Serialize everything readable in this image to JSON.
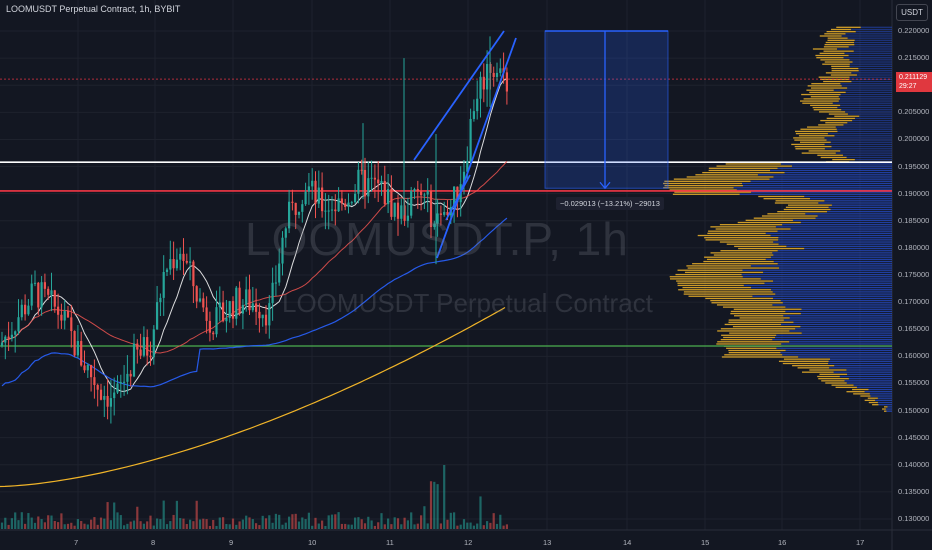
{
  "header": {
    "title": "LOOMUSDT Perpetual Contract, 1h, BYBIT",
    "currency": "USDT"
  },
  "watermark": {
    "symbol": "LOOMUSDT.P, 1h",
    "description": "LOOMUSDT Perpetual Contract"
  },
  "price_axis": {
    "labels": [
      "0.220000",
      "0.215000",
      "0.210000",
      "0.205000",
      "0.200000",
      "0.195000",
      "0.190000",
      "0.185000",
      "0.180000",
      "0.175000",
      "0.170000",
      "0.165000",
      "0.160000",
      "0.155000",
      "0.150000",
      "0.145000",
      "0.140000",
      "0.135000",
      "0.130000"
    ],
    "current_price": "0.211129",
    "countdown": "29:27"
  },
  "time_axis": {
    "labels": [
      "7",
      "8",
      "9",
      "10",
      "11",
      "12",
      "13",
      "14",
      "15",
      "16",
      "17"
    ]
  },
  "measure": {
    "label": "−0.029013 (−13.21%) −29013"
  },
  "colors": {
    "background": "#131722",
    "up": "#26a69a",
    "down": "#ef5350",
    "white_line": "#ffffff",
    "red_line": "#f23645",
    "green_line": "#4caf50",
    "volume_profile": "#f0b429",
    "volume_profile_value_area": "#2346b8",
    "trend_lines": "#2962ff",
    "ma_fast": "#ffffff",
    "ma_mid": "#ef5350",
    "ma_slow": "#2962ff",
    "ma_long": "#f0b429"
  },
  "chart_data": {
    "type": "candlestick",
    "ylim": [
      0.128,
      0.222
    ],
    "horizontal_levels": [
      0.1958,
      0.1905,
      0.1619
    ],
    "price_line": 0.211129,
    "measure_range": {
      "from": 0.22,
      "to": 0.191
    }
  }
}
